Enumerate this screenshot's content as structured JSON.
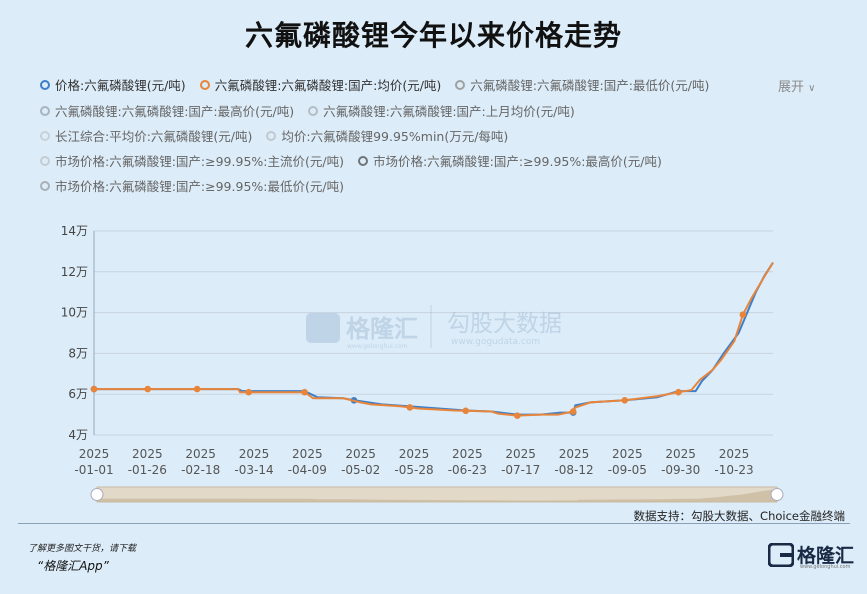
{
  "title": "六氟磷酸锂今年以来价格走势",
  "expand_label": "展开",
  "legend": {
    "rows": [
      [
        {
          "label": "价格:六氟磷酸锂(元/吨)",
          "color": "#3c7fc9"
        },
        {
          "label": "六氟磷酸锂:六氟磷酸锂:国产:均价(元/吨)",
          "color": "#e8853a"
        },
        {
          "label": "六氟磷酸锂:六氟磷酸锂:国产:最低价(元/吨)",
          "color": "#a0a0a0"
        }
      ],
      [
        {
          "label": "六氟磷酸锂:六氟磷酸锂:国产:最高价(元/吨)",
          "color": "#a8b4c0"
        },
        {
          "label": "六氟磷酸锂:六氟磷酸锂:国产:上月均价(元/吨)",
          "color": "#b4bcc6"
        }
      ],
      [
        {
          "label": "长江综合:平均价:六氟磷酸锂(元/吨)",
          "color": "#c8d0d8"
        },
        {
          "label": "均价:六氟磷酸锂99.95%min(万元/每吨)",
          "color": "#c0c8d0"
        }
      ],
      [
        {
          "label": "市场价格:六氟磷酸锂:国产:≥99.95%:主流价(元/吨)",
          "color": "#c4ccd4"
        },
        {
          "label": "市场价格:六氟磷酸锂:国产:≥99.95%:最高价(元/吨)",
          "color": "#707478"
        }
      ],
      [
        {
          "label": "市场价格:六氟磷酸锂:国产:≥99.95%:最低价(元/吨)",
          "color": "#a8b0b8"
        }
      ]
    ]
  },
  "watermark": {
    "logo_text": "格隆汇",
    "logo_url": "www.gelonghui.com",
    "text": "勾股大数据",
    "url": "www.gogudata.com"
  },
  "source": "数据支持：勾股大数据、Choice金融终端",
  "footer": {
    "download_text": "了解更多图文干货，请下载",
    "app_name": "“格隆汇App”",
    "brand": "格隆汇",
    "brand_url": "www.gelonghui.com"
  },
  "chart_data": {
    "type": "line",
    "ylim": [
      40000,
      140000
    ],
    "yticks": [
      40000,
      60000,
      80000,
      100000,
      120000,
      140000
    ],
    "ytick_labels": [
      "4万",
      "6万",
      "8万",
      "10万",
      "12万",
      "14万"
    ],
    "xtick_labels": [
      [
        "2025",
        "-01-01"
      ],
      [
        "2025",
        "-01-26"
      ],
      [
        "2025",
        "-02-18"
      ],
      [
        "2025",
        "-03-14"
      ],
      [
        "2025",
        "-04-09"
      ],
      [
        "2025",
        "-05-02"
      ],
      [
        "2025",
        "-05-28"
      ],
      [
        "2025",
        "-06-23"
      ],
      [
        "2025",
        "-07-17"
      ],
      [
        "2025",
        "-08-12"
      ],
      [
        "2025",
        "-09-05"
      ],
      [
        "2025",
        "-09-30"
      ],
      [
        "2025",
        "-10-23"
      ]
    ],
    "x_range": [
      "2025-01-01",
      "2025-11-13"
    ],
    "series": [
      {
        "name": "价格:六氟磷酸锂(元/吨)",
        "color": "#3c7fc9",
        "points": [
          [
            "2025-01-01",
            62500
          ],
          [
            "2025-02-18",
            62500
          ],
          [
            "2025-03-09",
            62500
          ],
          [
            "2025-03-11",
            61500
          ],
          [
            "2025-04-09",
            61500
          ],
          [
            "2025-04-15",
            58500
          ],
          [
            "2025-04-27",
            58000
          ],
          [
            "2025-05-02",
            57000
          ],
          [
            "2025-05-15",
            55000
          ],
          [
            "2025-05-28",
            54000
          ],
          [
            "2025-06-23",
            52000
          ],
          [
            "2025-07-05",
            51500
          ],
          [
            "2025-07-17",
            50000
          ],
          [
            "2025-07-28",
            50000
          ],
          [
            "2025-08-06",
            51000
          ],
          [
            "2025-08-12",
            51000
          ],
          [
            "2025-08-13",
            54500
          ],
          [
            "2025-08-20",
            56000
          ],
          [
            "2025-09-05",
            57000
          ],
          [
            "2025-09-20",
            58500
          ],
          [
            "2025-09-30",
            61500
          ],
          [
            "2025-10-08",
            61500
          ],
          [
            "2025-10-11",
            66500
          ],
          [
            "2025-10-16",
            72000
          ],
          [
            "2025-10-21",
            80000
          ],
          [
            "2025-10-28",
            90000
          ],
          [
            "2025-11-01",
            100000
          ],
          [
            "2025-11-05",
            110000
          ],
          [
            "2025-11-09",
            118000
          ],
          [
            "2025-11-13",
            124500
          ]
        ],
        "markers": [
          "2025-01-01",
          "2025-05-02",
          "2025-08-12"
        ]
      },
      {
        "name": "六氟磷酸锂:六氟磷酸锂:国产:均价(元/吨)",
        "color": "#e8853a",
        "points": [
          [
            "2025-01-01",
            62500
          ],
          [
            "2025-03-09",
            62500
          ],
          [
            "2025-03-10",
            61000
          ],
          [
            "2025-04-09",
            61000
          ],
          [
            "2025-04-13",
            58000
          ],
          [
            "2025-04-27",
            58000
          ],
          [
            "2025-05-05",
            56000
          ],
          [
            "2025-05-10",
            55000
          ],
          [
            "2025-05-24",
            54000
          ],
          [
            "2025-06-01",
            53000
          ],
          [
            "2025-06-18",
            52000
          ],
          [
            "2025-07-05",
            51500
          ],
          [
            "2025-07-08",
            50500
          ],
          [
            "2025-07-17",
            49500
          ],
          [
            "2025-07-28",
            50000
          ],
          [
            "2025-08-05",
            50000
          ],
          [
            "2025-08-12",
            51500
          ],
          [
            "2025-08-13",
            53500
          ],
          [
            "2025-08-20",
            56000
          ],
          [
            "2025-09-05",
            57000
          ],
          [
            "2025-09-20",
            59000
          ],
          [
            "2025-09-30",
            61000
          ],
          [
            "2025-10-06",
            62000
          ],
          [
            "2025-10-10",
            67000
          ],
          [
            "2025-10-16",
            72000
          ],
          [
            "2025-10-20",
            77000
          ],
          [
            "2025-10-26",
            86000
          ],
          [
            "2025-10-30",
            99000
          ],
          [
            "2025-11-03",
            107000
          ],
          [
            "2025-11-08",
            116000
          ],
          [
            "2025-11-13",
            124500
          ]
        ],
        "markers": [
          "2025-01-01",
          "2025-01-26",
          "2025-02-18",
          "2025-03-14",
          "2025-04-09",
          "2025-05-28",
          "2025-06-23",
          "2025-07-17",
          "2025-08-12",
          "2025-09-05",
          "2025-09-30",
          "2025-10-30"
        ]
      }
    ],
    "slider": {
      "start": 0,
      "end": 1
    }
  }
}
